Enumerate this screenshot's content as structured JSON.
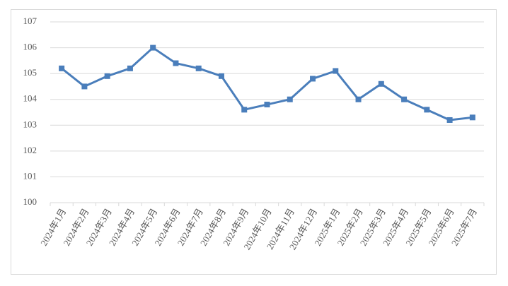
{
  "chart_data": {
    "type": "line",
    "categories": [
      "2024年1月",
      "2024年2月",
      "2024年3月",
      "2024年4月",
      "2024年5月",
      "2024年6月",
      "2024年7月",
      "2024年8月",
      "2024年9月",
      "2024年10月",
      "2024年11月",
      "2024年12月",
      "2025年1月",
      "2025年2月",
      "2025年3月",
      "2025年4月",
      "2025年5月",
      "2025年6月",
      "2025年7月"
    ],
    "values": [
      105.2,
      104.5,
      104.9,
      105.2,
      106.0,
      105.4,
      105.2,
      104.9,
      103.6,
      103.8,
      104.0,
      104.8,
      105.1,
      104.0,
      104.6,
      104.0,
      103.6,
      103.2,
      103.3
    ],
    "color": "#4a7ebb",
    "ylim": [
      100,
      107
    ],
    "yticks": [
      100,
      101,
      102,
      103,
      104,
      105,
      106,
      107
    ],
    "grid": true
  }
}
